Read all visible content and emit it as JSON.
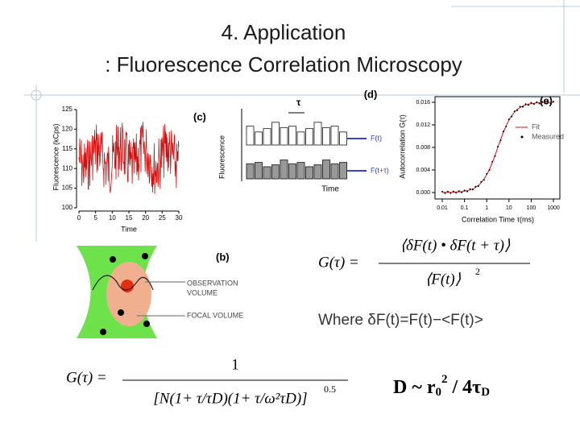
{
  "title": [
    "4. Application",
    ": Fluorescence Correlation Microscopy"
  ],
  "panel_c": {
    "label": "(c)",
    "ylabel": "Fluorescence (kCps)",
    "xlabel": "Time",
    "ylim": [
      100,
      125
    ],
    "yticks": [
      100,
      105,
      110,
      115,
      120,
      125
    ],
    "xlim": [
      0,
      30
    ],
    "xticks": [
      0,
      5,
      10,
      15,
      20,
      25,
      30
    ]
  },
  "panel_d": {
    "label": "(d)",
    "tau": "τ",
    "ylabel": "Fluorescence",
    "xlabel": "Time",
    "legend": [
      "F(t)",
      "F(t+τ)"
    ]
  },
  "panel_e": {
    "label": "(e)",
    "ylabel": "Autocorrelation G(τ)",
    "xlabel": "Correlation Time τ(ms)",
    "ylim": [
      0,
      0.016
    ],
    "yticks": [
      {
        "value": 0,
        "label": "0.000"
      },
      0.004,
      0.008,
      0.012,
      0.016
    ],
    "xlim": [
      0.01,
      1000
    ],
    "xscale": "log",
    "xticks": [
      0.01,
      0.1,
      1,
      10,
      100,
      1000
    ],
    "legend": [
      "Fit",
      "Measured"
    ]
  },
  "panel_b": {
    "label": "(b)",
    "observation": [
      "OBSERVATION",
      "VOLUME"
    ],
    "focal": "FOCAL VOLUME"
  },
  "equation_g": {
    "lhs": "G(τ) =",
    "numerator": "⟨δF(t) • δF(t + τ)⟩",
    "denominator": "⟨F(t)⟩",
    "power": "2"
  },
  "where": "Where δF(t)=F(t)−<F(t)>",
  "equation_g2": {
    "lhs": "G(τ) =",
    "numerator": "1",
    "denominator": "[N(1+ τ/τD)(1+ τ/ω²τD)]",
    "power": "0.5"
  },
  "equation_d": {
    "main": "D ~ r",
    "sub": "0",
    "sup": "2",
    "rest": " / 4τ",
    "sub2": "D"
  }
}
